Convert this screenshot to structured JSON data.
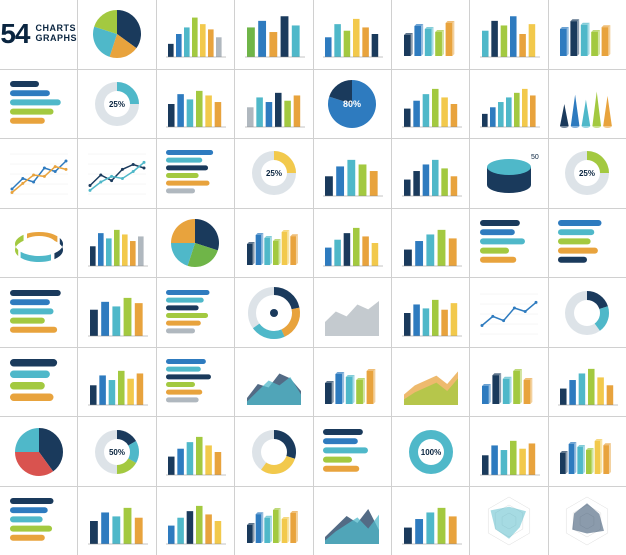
{
  "title": {
    "number": "54",
    "line1": "CHARTS",
    "line2": "GRAPHS",
    "number_color": "#0a2540",
    "text_color": "#0a2540"
  },
  "palette": {
    "navy": "#1a3a5c",
    "blue": "#2e7bbf",
    "teal": "#4fb8c9",
    "cyan": "#5bc0de",
    "green": "#6fb548",
    "lime": "#a3c940",
    "yellow": "#f2c94c",
    "orange": "#e8a33d",
    "red": "#d9534f",
    "grey": "#b0b8bf",
    "lightgrey": "#dde3e8"
  },
  "cells": [
    {
      "id": "r0c1",
      "type": "pie",
      "slices": [
        {
          "v": 35,
          "c": "#1a3a5c"
        },
        {
          "v": 20,
          "c": "#e8a33d"
        },
        {
          "v": 25,
          "c": "#4fb8c9"
        },
        {
          "v": 20,
          "c": "#a3c940"
        }
      ]
    },
    {
      "id": "r0c2",
      "type": "bar",
      "values": [
        20,
        35,
        45,
        60,
        50,
        42,
        30
      ],
      "colors": [
        "#1a3a5c",
        "#2e7bbf",
        "#4fb8c9",
        "#a3c940",
        "#f2c94c",
        "#e8a33d",
        "#b0b8bf"
      ]
    },
    {
      "id": "r0c3",
      "type": "bar",
      "values": [
        45,
        55,
        38,
        62,
        48
      ],
      "colors": [
        "#6fb548",
        "#2e7bbf",
        "#e8a33d",
        "#1a3a5c",
        "#4fb8c9"
      ]
    },
    {
      "id": "r0c4",
      "type": "bar",
      "values": [
        30,
        50,
        40,
        58,
        45,
        35
      ],
      "colors": [
        "#2e7bbf",
        "#4fb8c9",
        "#a3c940",
        "#f2c94c",
        "#e8a33d",
        "#1a3a5c"
      ]
    },
    {
      "id": "r0c5",
      "type": "bar3d",
      "values": [
        35,
        50,
        45,
        40,
        55
      ],
      "colors": [
        "#1a3a5c",
        "#2e7bbf",
        "#4fb8c9",
        "#a3c940",
        "#e8a33d"
      ]
    },
    {
      "id": "r0c6",
      "type": "bar",
      "values": [
        40,
        55,
        48,
        62,
        35,
        50
      ],
      "colors": [
        "#4fb8c9",
        "#1a3a5c",
        "#a3c940",
        "#2e7bbf",
        "#e8a33d",
        "#f2c94c"
      ]
    },
    {
      "id": "r0c7",
      "type": "bar3d",
      "values": [
        45,
        58,
        52,
        40,
        48
      ],
      "colors": [
        "#2e7bbf",
        "#1a3a5c",
        "#4fb8c9",
        "#a3c940",
        "#e8a33d"
      ]
    },
    {
      "id": "r1c0",
      "type": "hbar",
      "values": [
        40,
        55,
        70,
        60,
        48
      ],
      "colors": [
        "#1a3a5c",
        "#2e7bbf",
        "#4fb8c9",
        "#a3c940",
        "#e8a33d"
      ]
    },
    {
      "id": "r1c1",
      "type": "donut",
      "value": 25,
      "label": "25%",
      "colors": [
        "#4fb8c9",
        "#dde3e8"
      ]
    },
    {
      "id": "r1c2",
      "type": "bar",
      "values": [
        35,
        50,
        42,
        55,
        48,
        38
      ],
      "colors": [
        "#1a3a5c",
        "#2e7bbf",
        "#4fb8c9",
        "#a3c940",
        "#f2c94c",
        "#e8a33d"
      ]
    },
    {
      "id": "r1c3",
      "type": "bar",
      "values": [
        30,
        45,
        38,
        52,
        40,
        48
      ],
      "colors": [
        "#b0b8bf",
        "#4fb8c9",
        "#2e7bbf",
        "#1a3a5c",
        "#a3c940",
        "#e8a33d"
      ]
    },
    {
      "id": "r1c4",
      "type": "pie",
      "slices": [
        {
          "v": 80,
          "c": "#2e7bbf"
        },
        {
          "v": 20,
          "c": "#1a3a5c"
        }
      ],
      "label": "80%"
    },
    {
      "id": "r1c5",
      "type": "bar",
      "values": [
        28,
        40,
        50,
        58,
        45,
        35
      ],
      "colors": [
        "#1a3a5c",
        "#2e7bbf",
        "#4fb8c9",
        "#a3c940",
        "#f2c94c",
        "#e8a33d"
      ]
    },
    {
      "id": "r1c6",
      "type": "bar",
      "values": [
        20,
        30,
        38,
        45,
        52,
        58,
        48
      ],
      "colors": [
        "#1a3a5c",
        "#2e7bbf",
        "#4fb8c9",
        "#4fb8c9",
        "#a3c940",
        "#f2c94c",
        "#e8a33d"
      ]
    },
    {
      "id": "r1c7",
      "type": "cone",
      "values": [
        35,
        50,
        42,
        55,
        48
      ],
      "colors": [
        "#1a3a5c",
        "#2e7bbf",
        "#4fb8c9",
        "#a3c940",
        "#e8a33d"
      ]
    },
    {
      "id": "r2c0",
      "type": "line",
      "series": [
        {
          "points": [
            10,
            25,
            20,
            40,
            35,
            50
          ],
          "c": "#2e7bbf"
        },
        {
          "points": [
            5,
            18,
            30,
            28,
            42,
            38
          ],
          "c": "#e8a33d"
        }
      ]
    },
    {
      "id": "r2c1",
      "type": "line",
      "series": [
        {
          "points": [
            15,
            30,
            22,
            38,
            45,
            40
          ],
          "c": "#1a3a5c"
        },
        {
          "points": [
            8,
            20,
            28,
            25,
            35,
            48
          ],
          "c": "#4fb8c9"
        }
      ]
    },
    {
      "id": "r2c2",
      "type": "hbar",
      "values": [
        65,
        50,
        58,
        45,
        60,
        40
      ],
      "colors": [
        "#2e7bbf",
        "#4fb8c9",
        "#1a3a5c",
        "#a3c940",
        "#e8a33d",
        "#b0b8bf"
      ]
    },
    {
      "id": "r2c3",
      "type": "donut",
      "value": 25,
      "label": "25%",
      "colors": [
        "#f2c94c",
        "#dde3e8"
      ]
    },
    {
      "id": "r2c4",
      "type": "bar",
      "values": [
        30,
        45,
        55,
        48,
        38
      ],
      "colors": [
        "#1a3a5c",
        "#2e7bbf",
        "#4fb8c9",
        "#a3c940",
        "#e8a33d"
      ]
    },
    {
      "id": "r2c5",
      "type": "bar",
      "values": [
        25,
        38,
        48,
        55,
        42,
        30
      ],
      "colors": [
        "#1a3a5c",
        "#1a3a5c",
        "#2e7bbf",
        "#4fb8c9",
        "#a3c940",
        "#e8a33d"
      ]
    },
    {
      "id": "r2c6",
      "type": "cylinder",
      "value": 50,
      "label": "50%",
      "colors": [
        "#1a3a5c",
        "#4fb8c9"
      ]
    },
    {
      "id": "r2c7",
      "type": "donut",
      "value": 25,
      "label": "25%",
      "colors": [
        "#a3c940",
        "#dde3e8"
      ]
    },
    {
      "id": "r3c0",
      "type": "ring3d",
      "colors": [
        "#1a3a5c",
        "#4fb8c9",
        "#a3c940",
        "#e8a33d"
      ]
    },
    {
      "id": "r3c1",
      "type": "bar",
      "values": [
        30,
        50,
        42,
        55,
        48,
        38,
        45
      ],
      "colors": [
        "#1a3a5c",
        "#2e7bbf",
        "#4fb8c9",
        "#a3c940",
        "#f2c94c",
        "#e8a33d",
        "#b0b8bf"
      ]
    },
    {
      "id": "r3c2",
      "type": "pie",
      "slices": [
        {
          "v": 30,
          "c": "#1a3a5c"
        },
        {
          "v": 25,
          "c": "#6fb548"
        },
        {
          "v": 20,
          "c": "#4fb8c9"
        },
        {
          "v": 25,
          "c": "#e8a33d"
        }
      ]
    },
    {
      "id": "r3c3",
      "type": "bar3d",
      "values": [
        35,
        50,
        45,
        40,
        55,
        48
      ],
      "colors": [
        "#1a3a5c",
        "#2e7bbf",
        "#4fb8c9",
        "#a3c940",
        "#f2c94c",
        "#e8a33d"
      ]
    },
    {
      "id": "r3c4",
      "type": "bar",
      "values": [
        28,
        40,
        50,
        58,
        45,
        35
      ],
      "colors": [
        "#2e7bbf",
        "#4fb8c9",
        "#1a3a5c",
        "#a3c940",
        "#e8a33d",
        "#f2c94c"
      ]
    },
    {
      "id": "r3c5",
      "type": "bar",
      "values": [
        25,
        38,
        48,
        55,
        42
      ],
      "colors": [
        "#1a3a5c",
        "#2e7bbf",
        "#4fb8c9",
        "#a3c940",
        "#e8a33d"
      ]
    },
    {
      "id": "r3c6",
      "type": "hbar",
      "values": [
        55,
        48,
        62,
        40,
        50
      ],
      "colors": [
        "#1a3a5c",
        "#2e7bbf",
        "#4fb8c9",
        "#a3c940",
        "#e8a33d"
      ]
    },
    {
      "id": "r3c7",
      "type": "hbar",
      "values": [
        60,
        50,
        45,
        55,
        40
      ],
      "colors": [
        "#2e7bbf",
        "#4fb8c9",
        "#a3c940",
        "#e8a33d",
        "#1a3a5c"
      ]
    },
    {
      "id": "r4c0",
      "type": "hbar",
      "values": [
        70,
        55,
        60,
        48,
        65
      ],
      "colors": [
        "#1a3a5c",
        "#2e7bbf",
        "#4fb8c9",
        "#a3c940",
        "#e8a33d"
      ]
    },
    {
      "id": "r4c1",
      "type": "bar",
      "values": [
        40,
        52,
        45,
        58,
        50
      ],
      "colors": [
        "#1a3a5c",
        "#2e7bbf",
        "#4fb8c9",
        "#a3c940",
        "#e8a33d"
      ]
    },
    {
      "id": "r4c2",
      "type": "hbar",
      "values": [
        60,
        52,
        45,
        58,
        48,
        40
      ],
      "colors": [
        "#2e7bbf",
        "#4fb8c9",
        "#1a3a5c",
        "#a3c940",
        "#e8a33d",
        "#b0b8bf"
      ]
    },
    {
      "id": "r4c3",
      "type": "gauge",
      "value": 65,
      "colors": [
        "#1a3a5c",
        "#e8a33d",
        "#4fb8c9"
      ]
    },
    {
      "id": "r4c4",
      "type": "area",
      "series": [
        {
          "points": [
            20,
            35,
            28,
            45,
            38,
            50
          ],
          "c": "#b0b8bf"
        }
      ]
    },
    {
      "id": "r4c5",
      "type": "bar",
      "values": [
        35,
        48,
        42,
        55,
        40,
        50
      ],
      "colors": [
        "#1a3a5c",
        "#2e7bbf",
        "#4fb8c9",
        "#a3c940",
        "#e8a33d",
        "#f2c94c"
      ]
    },
    {
      "id": "r4c6",
      "type": "line",
      "series": [
        {
          "points": [
            15,
            28,
            22,
            40,
            35,
            48
          ],
          "c": "#2e7bbf"
        }
      ]
    },
    {
      "id": "r4c7",
      "type": "donut",
      "value": 40,
      "colors": [
        "#1a3a5c",
        "#4fb8c9",
        "#dde3e8"
      ]
    },
    {
      "id": "r5c0",
      "type": "hbar",
      "values": [
        65,
        55,
        48,
        60
      ],
      "colors": [
        "#1a3a5c",
        "#4fb8c9",
        "#a3c940",
        "#e8a33d"
      ]
    },
    {
      "id": "r5c1",
      "type": "bar",
      "values": [
        30,
        45,
        38,
        52,
        40,
        48
      ],
      "colors": [
        "#1a3a5c",
        "#2e7bbf",
        "#4fb8c9",
        "#a3c940",
        "#f2c94c",
        "#e8a33d"
      ]
    },
    {
      "id": "r5c2",
      "type": "hbar",
      "values": [
        55,
        48,
        62,
        40,
        50,
        45
      ],
      "colors": [
        "#2e7bbf",
        "#4fb8c9",
        "#1a3a5c",
        "#a3c940",
        "#e8a33d",
        "#b0b8bf"
      ]
    },
    {
      "id": "r5c3",
      "type": "area",
      "series": [
        {
          "points": [
            10,
            30,
            25,
            45,
            38,
            20
          ],
          "c": "#1a3a5c"
        },
        {
          "points": [
            5,
            20,
            35,
            28,
            40,
            15
          ],
          "c": "#4fb8c9"
        }
      ]
    },
    {
      "id": "r5c4",
      "type": "bar3d",
      "values": [
        35,
        50,
        45,
        40,
        55
      ],
      "colors": [
        "#1a3a5c",
        "#2e7bbf",
        "#4fb8c9",
        "#a3c940",
        "#e8a33d"
      ]
    },
    {
      "id": "r5c5",
      "type": "area",
      "series": [
        {
          "points": [
            15,
            28,
            35,
            42,
            30,
            48
          ],
          "c": "#e8a33d"
        },
        {
          "points": [
            8,
            18,
            25,
            32,
            20,
            38
          ],
          "c": "#a3c940"
        }
      ]
    },
    {
      "id": "r5c6",
      "type": "bar3d",
      "values": [
        30,
        48,
        42,
        55,
        40
      ],
      "colors": [
        "#2e7bbf",
        "#1a3a5c",
        "#4fb8c9",
        "#a3c940",
        "#e8a33d"
      ]
    },
    {
      "id": "r5c7",
      "type": "bar",
      "values": [
        25,
        38,
        48,
        55,
        42,
        30
      ],
      "colors": [
        "#1a3a5c",
        "#2e7bbf",
        "#4fb8c9",
        "#a3c940",
        "#f2c94c",
        "#e8a33d"
      ]
    },
    {
      "id": "r6c0",
      "type": "pie",
      "slices": [
        {
          "v": 40,
          "c": "#1a3a5c"
        },
        {
          "v": 35,
          "c": "#d9534f"
        },
        {
          "v": 25,
          "c": "#4fb8c9"
        }
      ]
    },
    {
      "id": "r6c1",
      "type": "donut",
      "value": 50,
      "label": "50%",
      "colors": [
        "#1a3a5c",
        "#4fb8c9",
        "#a3c940",
        "#dde3e8"
      ]
    },
    {
      "id": "r6c2",
      "type": "bar",
      "values": [
        28,
        40,
        50,
        58,
        45,
        35
      ],
      "colors": [
        "#1a3a5c",
        "#2e7bbf",
        "#4fb8c9",
        "#a3c940",
        "#f2c94c",
        "#e8a33d"
      ]
    },
    {
      "id": "r6c3",
      "type": "donut",
      "value": 60,
      "colors": [
        "#1a3a5c",
        "#f2c94c",
        "#dde3e8"
      ]
    },
    {
      "id": "r6c4",
      "type": "hbar",
      "values": [
        55,
        48,
        62,
        40,
        50
      ],
      "colors": [
        "#1a3a5c",
        "#2e7bbf",
        "#4fb8c9",
        "#a3c940",
        "#e8a33d"
      ]
    },
    {
      "id": "r6c5",
      "type": "donut",
      "value": 100,
      "label": "100%",
      "colors": [
        "#1a3a5c",
        "#4fb8c9"
      ]
    },
    {
      "id": "r6c6",
      "type": "bar",
      "values": [
        30,
        45,
        38,
        52,
        40,
        48
      ],
      "colors": [
        "#1a3a5c",
        "#2e7bbf",
        "#4fb8c9",
        "#a3c940",
        "#f2c94c",
        "#e8a33d"
      ]
    },
    {
      "id": "r6c7",
      "type": "bar3d",
      "values": [
        35,
        50,
        45,
        40,
        55,
        48
      ],
      "colors": [
        "#1a3a5c",
        "#2e7bbf",
        "#4fb8c9",
        "#a3c940",
        "#f2c94c",
        "#e8a33d"
      ]
    },
    {
      "id": "r7c0",
      "type": "hbar",
      "values": [
        60,
        52,
        45,
        58,
        48
      ],
      "colors": [
        "#1a3a5c",
        "#2e7bbf",
        "#4fb8c9",
        "#a3c940",
        "#e8a33d"
      ]
    },
    {
      "id": "r7c1",
      "type": "bar",
      "values": [
        35,
        48,
        42,
        55,
        40
      ],
      "colors": [
        "#1a3a5c",
        "#2e7bbf",
        "#4fb8c9",
        "#a3c940",
        "#e8a33d"
      ]
    },
    {
      "id": "r7c2",
      "type": "bar",
      "values": [
        28,
        40,
        50,
        58,
        45,
        35
      ],
      "colors": [
        "#2e7bbf",
        "#4fb8c9",
        "#1a3a5c",
        "#a3c940",
        "#e8a33d",
        "#f2c94c"
      ]
    },
    {
      "id": "r7c3",
      "type": "bar3d",
      "values": [
        30,
        48,
        42,
        55,
        40,
        50
      ],
      "colors": [
        "#1a3a5c",
        "#2e7bbf",
        "#4fb8c9",
        "#a3c940",
        "#f2c94c",
        "#e8a33d"
      ]
    },
    {
      "id": "r7c4",
      "type": "area",
      "series": [
        {
          "points": [
            10,
            25,
            40,
            30,
            50,
            20
          ],
          "c": "#1a3a5c"
        },
        {
          "points": [
            5,
            18,
            28,
            38,
            22,
            42
          ],
          "c": "#4fb8c9"
        }
      ]
    },
    {
      "id": "r7c5",
      "type": "bar",
      "values": [
        25,
        38,
        48,
        55,
        42
      ],
      "colors": [
        "#1a3a5c",
        "#2e7bbf",
        "#4fb8c9",
        "#a3c940",
        "#e8a33d"
      ]
    },
    {
      "id": "r7c6",
      "type": "radar",
      "values": [
        40,
        55,
        35,
        50,
        45,
        60
      ],
      "color": "#4fb8c9"
    },
    {
      "id": "r7c7",
      "type": "radar",
      "values": [
        50,
        40,
        55,
        35,
        48,
        42
      ],
      "color": "#1a3a5c"
    }
  ]
}
